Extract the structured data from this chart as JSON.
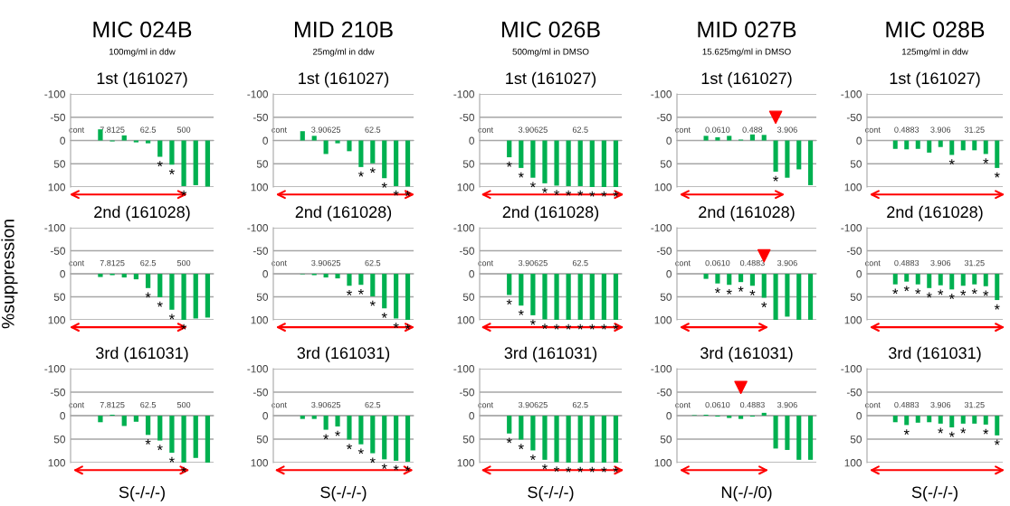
{
  "chart_data": [
    {
      "type": "other",
      "title": "MIC 024B",
      "subtitle": "100mg/ml in ddw"
    },
    {
      "type": "other",
      "title": "MID 210B",
      "subtitle": "25mg/ml in ddw"
    },
    {
      "type": "other",
      "title": "MIC 026B",
      "subtitle": "500mg/ml in DMSO"
    },
    {
      "type": "other",
      "title": "MID 027B",
      "subtitle": "15.625mg/ml in DMSO"
    },
    {
      "type": "other",
      "title": "MIC 028B",
      "subtitle": "125mg/ml in ddw"
    },
    {
      "type": "bar",
      "title": "1st (161027)",
      "categories": [
        "cont",
        null,
        null,
        "7.8125",
        null,
        null,
        "62.5",
        null,
        null,
        "500",
        null,
        null
      ],
      "ylim": [
        100,
        -100
      ],
      "yticks": [
        -100,
        -50,
        0,
        50,
        100
      ],
      "grid": "y",
      "series": [
        {
          "color": "#00b050",
          "values": [
            0,
            0,
            -24,
            2,
            -11,
            4,
            6,
            35,
            52,
            98,
            96,
            99
          ],
          "value_labels": [
            null,
            null,
            null,
            null,
            null,
            null,
            null,
            "*",
            "*",
            "*",
            null,
            null
          ]
        }
      ]
    },
    {
      "type": "bar",
      "title": "1st (161027)",
      "categories": [
        "cont",
        null,
        null,
        null,
        "3.90625",
        null,
        null,
        null,
        "62.5",
        null,
        null,
        null
      ],
      "ylim": [
        100,
        -100
      ],
      "yticks": [
        -100,
        -50,
        0,
        50,
        100
      ],
      "grid": "y",
      "series": [
        {
          "color": "#00b050",
          "values": [
            0,
            0,
            -20,
            -10,
            29,
            6,
            23,
            57,
            49,
            81,
            98,
            99
          ],
          "value_labels": [
            null,
            null,
            null,
            null,
            null,
            null,
            null,
            "*",
            "*",
            "*",
            "*",
            "*"
          ]
        }
      ]
    },
    {
      "type": "bar",
      "title": "1st (161027)",
      "categories": [
        "cont",
        null,
        null,
        null,
        "3.90625",
        null,
        null,
        null,
        "62.5",
        null,
        null,
        null
      ],
      "ylim": [
        100,
        -100
      ],
      "yticks": [
        -100,
        -50,
        0,
        50,
        100
      ],
      "grid": "y",
      "series": [
        {
          "color": "#00b050",
          "values": [
            0,
            0,
            36,
            59,
            80,
            92,
            97,
            98,
            98,
            100,
            100,
            100
          ],
          "value_labels": [
            null,
            null,
            "*",
            "*",
            "*",
            "*",
            "*",
            "*",
            "*",
            "*",
            "*",
            "*"
          ]
        }
      ]
    },
    {
      "type": "bar",
      "title": "1st (161027)",
      "categories": [
        "cont",
        null,
        null,
        "0.0610",
        null,
        null,
        "0.488",
        null,
        null,
        "3.906",
        null,
        null
      ],
      "ylim": [
        100,
        -100
      ],
      "yticks": [
        -100,
        -50,
        0,
        50,
        100
      ],
      "grid": "y",
      "series": [
        {
          "color": "#00b050",
          "values": [
            0,
            0,
            -10,
            -7,
            -10,
            -2,
            -13,
            -12,
            67,
            80,
            62,
            96
          ],
          "value_labels": [
            null,
            null,
            null,
            null,
            null,
            null,
            null,
            null,
            "*",
            null,
            null,
            null
          ]
        },
        {
          "type": "scatter",
          "values": [
            null,
            null,
            null,
            null,
            null,
            null,
            null,
            null,
            -50,
            null,
            null,
            null
          ],
          "color": "#ff0000",
          "marker": "triangle"
        }
      ]
    },
    {
      "type": "bar",
      "title": "1st (161027)",
      "categories": [
        "cont",
        null,
        null,
        "0.4883",
        null,
        null,
        "3.906",
        null,
        null,
        "31.25",
        null,
        null
      ],
      "ylim": [
        100,
        -100
      ],
      "yticks": [
        -100,
        -50,
        0,
        50,
        100
      ],
      "grid": "y",
      "series": [
        {
          "color": "#00b050",
          "values": [
            0,
            0,
            18,
            19,
            18,
            26,
            14,
            31,
            21,
            21,
            29,
            59
          ],
          "value_labels": [
            null,
            null,
            null,
            null,
            null,
            null,
            null,
            "*",
            null,
            null,
            "*",
            "*"
          ]
        }
      ]
    },
    {
      "type": "bar",
      "title": "2nd (161028)",
      "ylabel": "%suppression",
      "categories": [
        "cont",
        null,
        null,
        "7.8125",
        null,
        null,
        "62.5",
        null,
        null,
        "500",
        null,
        null
      ],
      "ylim": [
        100,
        -100
      ],
      "yticks": [
        -100,
        -50,
        0,
        50,
        100
      ],
      "grid": "y",
      "series": [
        {
          "color": "#00b050",
          "values": [
            0,
            0,
            7,
            3,
            8,
            12,
            31,
            51,
            78,
            100,
            97,
            95
          ],
          "value_labels": [
            null,
            null,
            null,
            null,
            null,
            null,
            "*",
            "*",
            "*",
            "*",
            null,
            null
          ]
        }
      ]
    },
    {
      "type": "bar",
      "title": "2nd (161028)",
      "categories": [
        "cont",
        null,
        null,
        null,
        "3.90625",
        null,
        null,
        null,
        "62.5",
        null,
        null,
        null
      ],
      "ylim": [
        100,
        -100
      ],
      "yticks": [
        -100,
        -50,
        0,
        50,
        100
      ],
      "grid": "y",
      "series": [
        {
          "color": "#00b050",
          "values": [
            0,
            0,
            1,
            3,
            8,
            10,
            26,
            24,
            49,
            75,
            97,
            100
          ],
          "value_labels": [
            null,
            null,
            null,
            null,
            null,
            null,
            "*",
            "*",
            "*",
            "*",
            "*",
            "*"
          ]
        }
      ]
    },
    {
      "type": "bar",
      "title": "2nd (161028)",
      "categories": [
        "cont",
        null,
        null,
        null,
        "3.90625",
        null,
        null,
        null,
        "62.5",
        null,
        null,
        null
      ],
      "ylim": [
        100,
        -100
      ],
      "yticks": [
        -100,
        -50,
        0,
        50,
        100
      ],
      "grid": "y",
      "series": [
        {
          "color": "#00b050",
          "values": [
            0,
            0,
            46,
            69,
            90,
            99,
            100,
            100,
            100,
            100,
            100,
            100
          ],
          "value_labels": [
            null,
            null,
            "*",
            "*",
            "*",
            "*",
            "*",
            "*",
            "*",
            "*",
            "*",
            "*"
          ]
        }
      ]
    },
    {
      "type": "bar",
      "title": "2nd (161028)",
      "categories": [
        "cont",
        null,
        null,
        "0.0610",
        null,
        null,
        "0.4883",
        null,
        null,
        "3.906",
        null,
        null
      ],
      "ylim": [
        100,
        -100
      ],
      "yticks": [
        -100,
        -50,
        0,
        50,
        100
      ],
      "grid": "y",
      "series": [
        {
          "color": "#00b050",
          "values": [
            0,
            0,
            11,
            21,
            24,
            18,
            26,
            52,
            100,
            93,
            100,
            100
          ],
          "value_labels": [
            null,
            null,
            null,
            "*",
            "*",
            "*",
            "*",
            "*",
            null,
            null,
            null,
            null
          ]
        },
        {
          "type": "scatter",
          "values": [
            null,
            null,
            null,
            null,
            null,
            null,
            null,
            -39,
            null,
            null,
            null,
            null
          ],
          "color": "#ff0000",
          "marker": "triangle"
        }
      ]
    },
    {
      "type": "bar",
      "title": "2nd (161028)",
      "categories": [
        "cont",
        null,
        null,
        "0.4883",
        null,
        null,
        "3.906",
        null,
        null,
        "31.25",
        null,
        null
      ],
      "ylim": [
        100,
        -100
      ],
      "yticks": [
        -100,
        -50,
        0,
        50,
        100
      ],
      "grid": "y",
      "series": [
        {
          "color": "#00b050",
          "values": [
            0,
            0,
            23,
            17,
            23,
            31,
            25,
            34,
            26,
            23,
            27,
            57
          ],
          "value_labels": [
            null,
            null,
            "*",
            "*",
            "*",
            "*",
            "*",
            "*",
            "*",
            "*",
            "*",
            "*"
          ]
        }
      ]
    },
    {
      "type": "bar",
      "title": "3rd (161031)",
      "categories": [
        "cont",
        null,
        null,
        "7.8125",
        null,
        null,
        "62.5",
        null,
        null,
        "500",
        null,
        null
      ],
      "ylim": [
        100,
        -100
      ],
      "yticks": [
        -100,
        -50,
        0,
        50,
        100
      ],
      "grid": "y",
      "series": [
        {
          "color": "#00b050",
          "values": [
            0,
            0,
            14,
            -2,
            22,
            13,
            41,
            53,
            79,
            100,
            90,
            100
          ],
          "value_labels": [
            null,
            null,
            null,
            null,
            null,
            null,
            "*",
            "*",
            "*",
            "*",
            null,
            null
          ]
        }
      ],
      "annotations": [
        "S(-/-/-)"
      ]
    },
    {
      "type": "bar",
      "title": "3rd (161031)",
      "categories": [
        "cont",
        null,
        null,
        null,
        "3.90625",
        null,
        null,
        null,
        "62.5",
        null,
        null,
        null
      ],
      "ylim": [
        100,
        -100
      ],
      "yticks": [
        -100,
        -50,
        0,
        50,
        100
      ],
      "grid": "y",
      "series": [
        {
          "color": "#00b050",
          "values": [
            0,
            0,
            7,
            7,
            30,
            23,
            51,
            61,
            80,
            93,
            96,
            98
          ],
          "value_labels": [
            null,
            null,
            null,
            null,
            "*",
            "*",
            "*",
            "*",
            "*",
            "*",
            "*",
            "*"
          ]
        }
      ],
      "annotations": [
        "S(-/-/-)"
      ]
    },
    {
      "type": "bar",
      "title": "3rd (161031)",
      "categories": [
        "cont",
        null,
        null,
        null,
        "3.90625",
        null,
        null,
        null,
        "62.5",
        null,
        null,
        null
      ],
      "ylim": [
        100,
        -100
      ],
      "yticks": [
        -100,
        -50,
        0,
        50,
        100
      ],
      "grid": "y",
      "series": [
        {
          "color": "#00b050",
          "values": [
            0,
            0,
            38,
            51,
            74,
            94,
            99,
            100,
            100,
            100,
            100,
            100
          ],
          "value_labels": [
            null,
            null,
            "*",
            "*",
            "*",
            "*",
            "*",
            "*",
            "*",
            "*",
            "*",
            "*"
          ]
        }
      ],
      "annotations": [
        "S(-/-/-)"
      ]
    },
    {
      "type": "bar",
      "title": "3rd (161031)",
      "categories": [
        "cont",
        null,
        null,
        "0.0610",
        null,
        null,
        "0.4883",
        null,
        null,
        "3.906",
        null,
        null
      ],
      "ylim": [
        100,
        -100
      ],
      "yticks": [
        -100,
        -50,
        0,
        50,
        100
      ],
      "grid": "y",
      "series": [
        {
          "color": "#00b050",
          "values": [
            0,
            -1,
            -2,
            2,
            5,
            7,
            2,
            -6,
            70,
            73,
            94,
            94
          ]
        },
        {
          "type": "scatter",
          "values": [
            null,
            null,
            null,
            null,
            null,
            -60,
            null,
            null,
            null,
            null,
            null,
            null
          ],
          "color": "#ff0000",
          "marker": "triangle"
        }
      ],
      "annotations": [
        "N(-/-/0)"
      ]
    },
    {
      "type": "bar",
      "title": "3rd (161031)",
      "categories": [
        "cont",
        null,
        null,
        "0.4883",
        null,
        null,
        "3.906",
        null,
        null,
        "31.25",
        null,
        null
      ],
      "ylim": [
        100,
        -100
      ],
      "yticks": [
        -100,
        -50,
        0,
        50,
        100
      ],
      "grid": "y",
      "series": [
        {
          "color": "#00b050",
          "values": [
            0,
            0,
            14,
            20,
            15,
            14,
            17,
            25,
            17,
            17,
            19,
            42
          ],
          "value_labels": [
            null,
            null,
            null,
            "*",
            null,
            null,
            "*",
            "*",
            "*",
            null,
            "*",
            "*"
          ]
        }
      ],
      "annotations": [
        "S(-/-/-)"
      ]
    }
  ]
}
